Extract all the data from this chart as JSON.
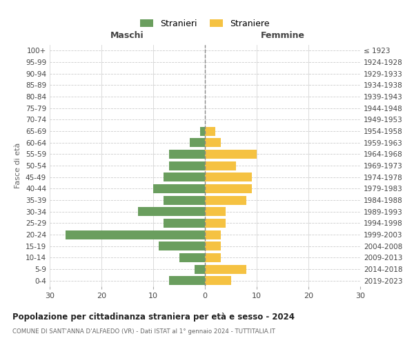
{
  "age_groups": [
    "0-4",
    "5-9",
    "10-14",
    "15-19",
    "20-24",
    "25-29",
    "30-34",
    "35-39",
    "40-44",
    "45-49",
    "50-54",
    "55-59",
    "60-64",
    "65-69",
    "70-74",
    "75-79",
    "80-84",
    "85-89",
    "90-94",
    "95-99",
    "100+"
  ],
  "birth_years": [
    "2019-2023",
    "2014-2018",
    "2009-2013",
    "2004-2008",
    "1999-2003",
    "1994-1998",
    "1989-1993",
    "1984-1988",
    "1979-1983",
    "1974-1978",
    "1969-1973",
    "1964-1968",
    "1959-1963",
    "1954-1958",
    "1949-1953",
    "1944-1948",
    "1939-1943",
    "1934-1938",
    "1929-1933",
    "1924-1928",
    "≤ 1923"
  ],
  "males": [
    7,
    2,
    5,
    9,
    27,
    8,
    13,
    8,
    10,
    8,
    7,
    7,
    3,
    1,
    0,
    0,
    0,
    0,
    0,
    0,
    0
  ],
  "females": [
    5,
    8,
    3,
    3,
    3,
    4,
    4,
    8,
    9,
    9,
    6,
    10,
    3,
    2,
    0,
    0,
    0,
    0,
    0,
    0,
    0
  ],
  "male_color": "#6a9e5e",
  "female_color": "#f5c242",
  "background_color": "#ffffff",
  "grid_color": "#cccccc",
  "dashed_line_color": "#888888",
  "title": "Popolazione per cittadinanza straniera per età e sesso - 2024",
  "subtitle": "COMUNE DI SANT'ANNA D'ALFAEDO (VR) - Dati ISTAT al 1° gennaio 2024 - TUTTITALIA.IT",
  "xlabel_left": "Maschi",
  "xlabel_right": "Femmine",
  "ylabel_left": "Fasce di età",
  "legend_males": "Stranieri",
  "legend_females": "Straniere",
  "xlim": 30
}
